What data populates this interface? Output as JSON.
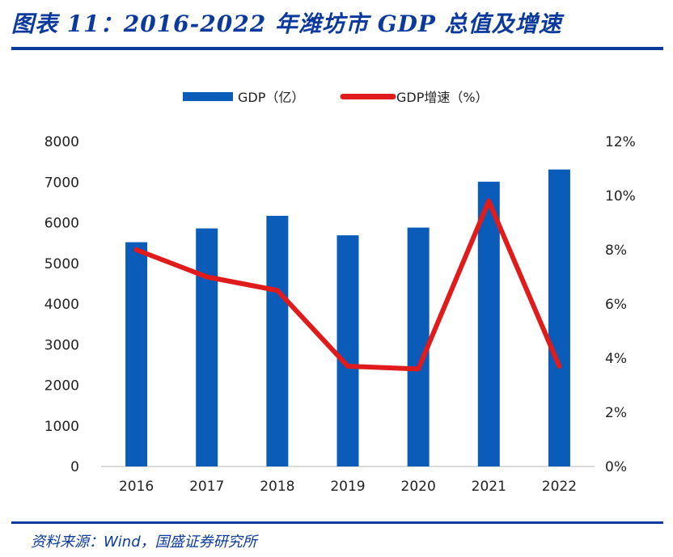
{
  "figure": {
    "title": "图表 11：2016-2022 年潍坊市 GDP 总值及增速",
    "source": "资料来源：Wind，国盛证券研究所"
  },
  "colors": {
    "bar": "#0b5cb8",
    "line": "#e01b1b",
    "rule": "#0b3a9c"
  },
  "chart_data": {
    "type": "bar",
    "categories": [
      "2016",
      "2017",
      "2018",
      "2019",
      "2020",
      "2021",
      "2022"
    ],
    "series": [
      {
        "name": "GDP（亿）",
        "type": "bar",
        "axis": "left",
        "values": [
          5520,
          5860,
          6170,
          5690,
          5880,
          7010,
          7310
        ]
      },
      {
        "name": "GDP增速（%）",
        "type": "line",
        "axis": "right",
        "values": [
          8.0,
          7.0,
          6.5,
          3.7,
          3.6,
          9.8,
          3.7
        ]
      }
    ],
    "y_left": {
      "lim": [
        0,
        8000
      ],
      "ticks": [
        "0",
        "1000",
        "2000",
        "3000",
        "4000",
        "5000",
        "6000",
        "7000",
        "8000"
      ]
    },
    "y_right": {
      "lim": [
        0,
        12
      ],
      "ticks": [
        "0%",
        "2%",
        "4%",
        "6%",
        "8%",
        "10%",
        "12%"
      ]
    },
    "legend_position": "top-center",
    "grid": false
  }
}
